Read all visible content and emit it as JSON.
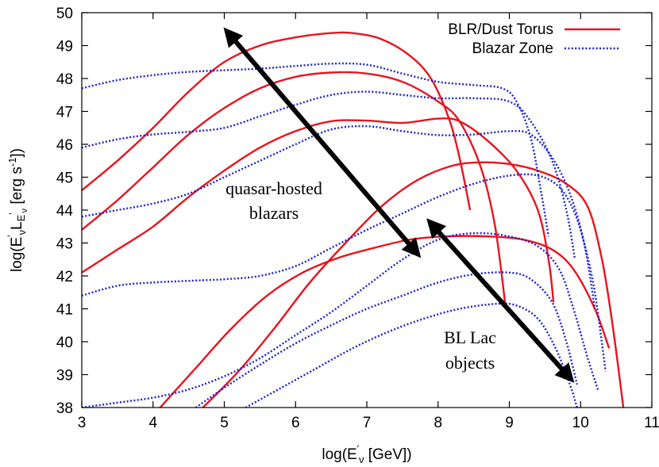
{
  "chart_data": {
    "type": "line",
    "xlabel": {
      "main": "log(E",
      "prime": "′",
      "sub": "ν",
      "tail": " [GeV])"
    },
    "ylabel": {
      "p1": "log(E",
      "prime1": "′",
      "sub1": "ν",
      "p2": "L",
      "sub2a": "E",
      "prime2": "′",
      "sub2b": "ν",
      "p3": " [erg s",
      "exp": "-1",
      "p4": "])"
    },
    "xlim": [
      3,
      11
    ],
    "ylim": [
      38,
      50
    ],
    "xticks": [
      "3",
      "4",
      "5",
      "6",
      "7",
      "8",
      "9",
      "10",
      "11"
    ],
    "yticks": [
      "38",
      "39",
      "40",
      "41",
      "42",
      "43",
      "44",
      "45",
      "46",
      "47",
      "48",
      "49",
      "50"
    ],
    "grid": false,
    "legend": {
      "placement": "top-right",
      "entries": [
        {
          "label": "BLR/Dust Torus",
          "color": "#e8141e",
          "style": "solid"
        },
        {
          "label": "Blazar Zone",
          "color": "#1a22d6",
          "style": "dotted"
        }
      ]
    },
    "annotations": [
      {
        "lines": [
          "quasar-hosted",
          "blazars"
        ],
        "x": 5.7,
        "y": 43.9
      },
      {
        "lines": [
          "BL Lac",
          "objects"
        ],
        "x": 8.75,
        "y": 39.6
      }
    ],
    "arrows": [
      {
        "from": [
          5.05,
          49.4
        ],
        "to": [
          7.7,
          42.7
        ]
      },
      {
        "from": [
          7.9,
          43.6
        ],
        "to": [
          9.85,
          38.9
        ]
      }
    ],
    "series": [
      {
        "group": "BLR/Dust Torus",
        "color": "#e8141e",
        "style": "solid",
        "points": [
          [
            3,
            44.6
          ],
          [
            3.5,
            45.5
          ],
          [
            4,
            46.5
          ],
          [
            4.5,
            47.6
          ],
          [
            5,
            48.5
          ],
          [
            5.5,
            49.0
          ],
          [
            6,
            49.25
          ],
          [
            6.5,
            49.38
          ],
          [
            6.8,
            49.38
          ],
          [
            7.2,
            49.2
          ],
          [
            7.6,
            48.7
          ],
          [
            7.9,
            48.0
          ],
          [
            8.15,
            46.8
          ],
          [
            8.3,
            45.6
          ],
          [
            8.45,
            44.0
          ]
        ]
      },
      {
        "group": "BLR/Dust Torus",
        "color": "#e8141e",
        "style": "solid",
        "points": [
          [
            3,
            43.4
          ],
          [
            3.5,
            44.3
          ],
          [
            4,
            45.3
          ],
          [
            4.5,
            46.3
          ],
          [
            5,
            47.1
          ],
          [
            5.5,
            47.7
          ],
          [
            6,
            48.05
          ],
          [
            6.5,
            48.18
          ],
          [
            7,
            48.15
          ],
          [
            7.5,
            47.9
          ],
          [
            8,
            47.3
          ],
          [
            8.3,
            46.7
          ],
          [
            8.6,
            45.3
          ],
          [
            8.8,
            43.5
          ],
          [
            8.95,
            41.0
          ]
        ]
      },
      {
        "group": "BLR/Dust Torus",
        "color": "#e8141e",
        "style": "solid",
        "points": [
          [
            3,
            42.1
          ],
          [
            3.5,
            42.8
          ],
          [
            4,
            43.5
          ],
          [
            4.5,
            44.4
          ],
          [
            5,
            45.2
          ],
          [
            5.5,
            45.9
          ],
          [
            6,
            46.4
          ],
          [
            6.5,
            46.7
          ],
          [
            7,
            46.72
          ],
          [
            7.5,
            46.65
          ],
          [
            8,
            46.78
          ],
          [
            8.3,
            46.7
          ],
          [
            8.7,
            46.1
          ],
          [
            9.1,
            45.2
          ],
          [
            9.4,
            44.0
          ],
          [
            9.55,
            42.5
          ],
          [
            9.62,
            41.2
          ]
        ]
      },
      {
        "group": "BLR/Dust Torus",
        "color": "#e8141e",
        "style": "solid",
        "points": [
          [
            4.7,
            38.0
          ],
          [
            5.2,
            39.1
          ],
          [
            5.7,
            40.4
          ],
          [
            6.2,
            41.8
          ],
          [
            6.7,
            43.0
          ],
          [
            7.2,
            44.1
          ],
          [
            7.7,
            44.9
          ],
          [
            8.2,
            45.35
          ],
          [
            8.6,
            45.45
          ],
          [
            9,
            45.4
          ],
          [
            9.4,
            45.2
          ],
          [
            9.8,
            44.8
          ],
          [
            10.1,
            44.1
          ],
          [
            10.3,
            42.5
          ],
          [
            10.45,
            40.5
          ],
          [
            10.6,
            38.0
          ]
        ]
      },
      {
        "group": "BLR/Dust Torus",
        "color": "#e8141e",
        "style": "solid",
        "points": [
          [
            4.1,
            38.0
          ],
          [
            4.6,
            39.2
          ],
          [
            5.1,
            40.4
          ],
          [
            5.6,
            41.4
          ],
          [
            6.1,
            42.1
          ],
          [
            6.6,
            42.55
          ],
          [
            7.1,
            42.85
          ],
          [
            7.6,
            43.1
          ],
          [
            8.1,
            43.2
          ],
          [
            8.7,
            43.2
          ],
          [
            9.2,
            43.1
          ],
          [
            9.6,
            42.8
          ],
          [
            9.9,
            42.2
          ],
          [
            10.2,
            41.0
          ],
          [
            10.4,
            39.8
          ]
        ]
      },
      {
        "group": "Blazar Zone",
        "color": "#1a22d6",
        "style": "dotted",
        "points": [
          [
            3,
            47.7
          ],
          [
            3.5,
            47.95
          ],
          [
            4,
            48.1
          ],
          [
            4.5,
            48.2
          ],
          [
            5,
            48.25
          ],
          [
            5.5,
            48.3
          ],
          [
            6,
            48.38
          ],
          [
            6.5,
            48.45
          ],
          [
            7,
            48.42
          ],
          [
            7.5,
            48.15
          ],
          [
            8,
            47.9
          ],
          [
            8.5,
            47.8
          ],
          [
            8.9,
            47.7
          ],
          [
            9.1,
            47.3
          ],
          [
            9.3,
            46.2
          ],
          [
            9.45,
            44.5
          ],
          [
            9.55,
            43.2
          ]
        ]
      },
      {
        "group": "Blazar Zone",
        "color": "#1a22d6",
        "style": "dotted",
        "points": [
          [
            3,
            45.9
          ],
          [
            3.5,
            46.15
          ],
          [
            4,
            46.3
          ],
          [
            4.5,
            46.38
          ],
          [
            5,
            46.5
          ],
          [
            5.5,
            46.85
          ],
          [
            6,
            47.2
          ],
          [
            6.5,
            47.5
          ],
          [
            7,
            47.6
          ],
          [
            7.5,
            47.5
          ],
          [
            8,
            47.4
          ],
          [
            8.5,
            47.4
          ],
          [
            9,
            47.3
          ],
          [
            9.3,
            46.7
          ],
          [
            9.6,
            45.5
          ],
          [
            9.8,
            44.0
          ],
          [
            9.92,
            42.5
          ]
        ]
      },
      {
        "group": "Blazar Zone",
        "color": "#1a22d6",
        "style": "dotted",
        "points": [
          [
            3,
            43.8
          ],
          [
            3.5,
            44.0
          ],
          [
            4,
            44.2
          ],
          [
            4.5,
            44.5
          ],
          [
            5,
            45.0
          ],
          [
            5.5,
            45.5
          ],
          [
            6,
            46.0
          ],
          [
            6.5,
            46.45
          ],
          [
            7,
            46.55
          ],
          [
            7.5,
            46.4
          ],
          [
            8,
            46.28
          ],
          [
            8.5,
            46.3
          ],
          [
            9,
            46.4
          ],
          [
            9.3,
            46.3
          ],
          [
            9.6,
            45.6
          ],
          [
            9.85,
            44.5
          ],
          [
            10.05,
            43.0
          ],
          [
            10.2,
            41.0
          ]
        ]
      },
      {
        "group": "Blazar Zone",
        "color": "#1a22d6",
        "style": "dotted",
        "points": [
          [
            3,
            41.4
          ],
          [
            3.5,
            41.7
          ],
          [
            4,
            41.8
          ],
          [
            4.5,
            41.85
          ],
          [
            5,
            41.9
          ],
          [
            5.5,
            42.0
          ],
          [
            6,
            42.3
          ],
          [
            6.5,
            42.85
          ],
          [
            7,
            43.4
          ],
          [
            7.5,
            43.9
          ],
          [
            8,
            44.4
          ],
          [
            8.5,
            44.8
          ],
          [
            9,
            45.05
          ],
          [
            9.4,
            45.05
          ],
          [
            9.7,
            44.7
          ],
          [
            9.9,
            44.0
          ],
          [
            10.05,
            43.0
          ],
          [
            10.2,
            41.5
          ],
          [
            10.35,
            39.1
          ]
        ]
      },
      {
        "group": "Blazar Zone",
        "color": "#1a22d6",
        "style": "dotted",
        "points": [
          [
            3,
            38.0
          ],
          [
            3.5,
            38.15
          ],
          [
            4,
            38.3
          ],
          [
            4.5,
            38.55
          ],
          [
            5,
            38.95
          ],
          [
            5.5,
            39.5
          ],
          [
            6,
            40.2
          ],
          [
            6.5,
            40.9
          ],
          [
            7,
            41.7
          ],
          [
            7.5,
            42.5
          ],
          [
            8,
            43.1
          ],
          [
            8.5,
            43.3
          ],
          [
            9,
            43.2
          ],
          [
            9.4,
            42.9
          ],
          [
            9.7,
            42.2
          ],
          [
            9.9,
            41.0
          ],
          [
            10.1,
            39.5
          ],
          [
            10.25,
            38.5
          ]
        ]
      },
      {
        "group": "Blazar Zone",
        "color": "#1a22d6",
        "style": "dotted",
        "points": [
          [
            4.6,
            38.0
          ],
          [
            5,
            38.6
          ],
          [
            5.5,
            39.3
          ],
          [
            6,
            39.95
          ],
          [
            6.5,
            40.5
          ],
          [
            7,
            41.0
          ],
          [
            7.5,
            41.4
          ],
          [
            8,
            41.8
          ],
          [
            8.5,
            42.05
          ],
          [
            9,
            42.1
          ],
          [
            9.3,
            41.9
          ],
          [
            9.6,
            41.2
          ],
          [
            9.8,
            40.0
          ],
          [
            9.95,
            38.7
          ]
        ]
      },
      {
        "group": "Blazar Zone",
        "color": "#1a22d6",
        "style": "dotted",
        "points": [
          [
            5.3,
            38.0
          ],
          [
            5.8,
            38.6
          ],
          [
            6.3,
            39.2
          ],
          [
            6.8,
            39.8
          ],
          [
            7.3,
            40.3
          ],
          [
            7.8,
            40.7
          ],
          [
            8.3,
            41.0
          ],
          [
            8.8,
            41.15
          ],
          [
            9.1,
            41.1
          ],
          [
            9.4,
            40.7
          ],
          [
            9.65,
            39.8
          ],
          [
            9.85,
            38.7
          ],
          [
            9.95,
            38.0
          ]
        ]
      }
    ]
  }
}
